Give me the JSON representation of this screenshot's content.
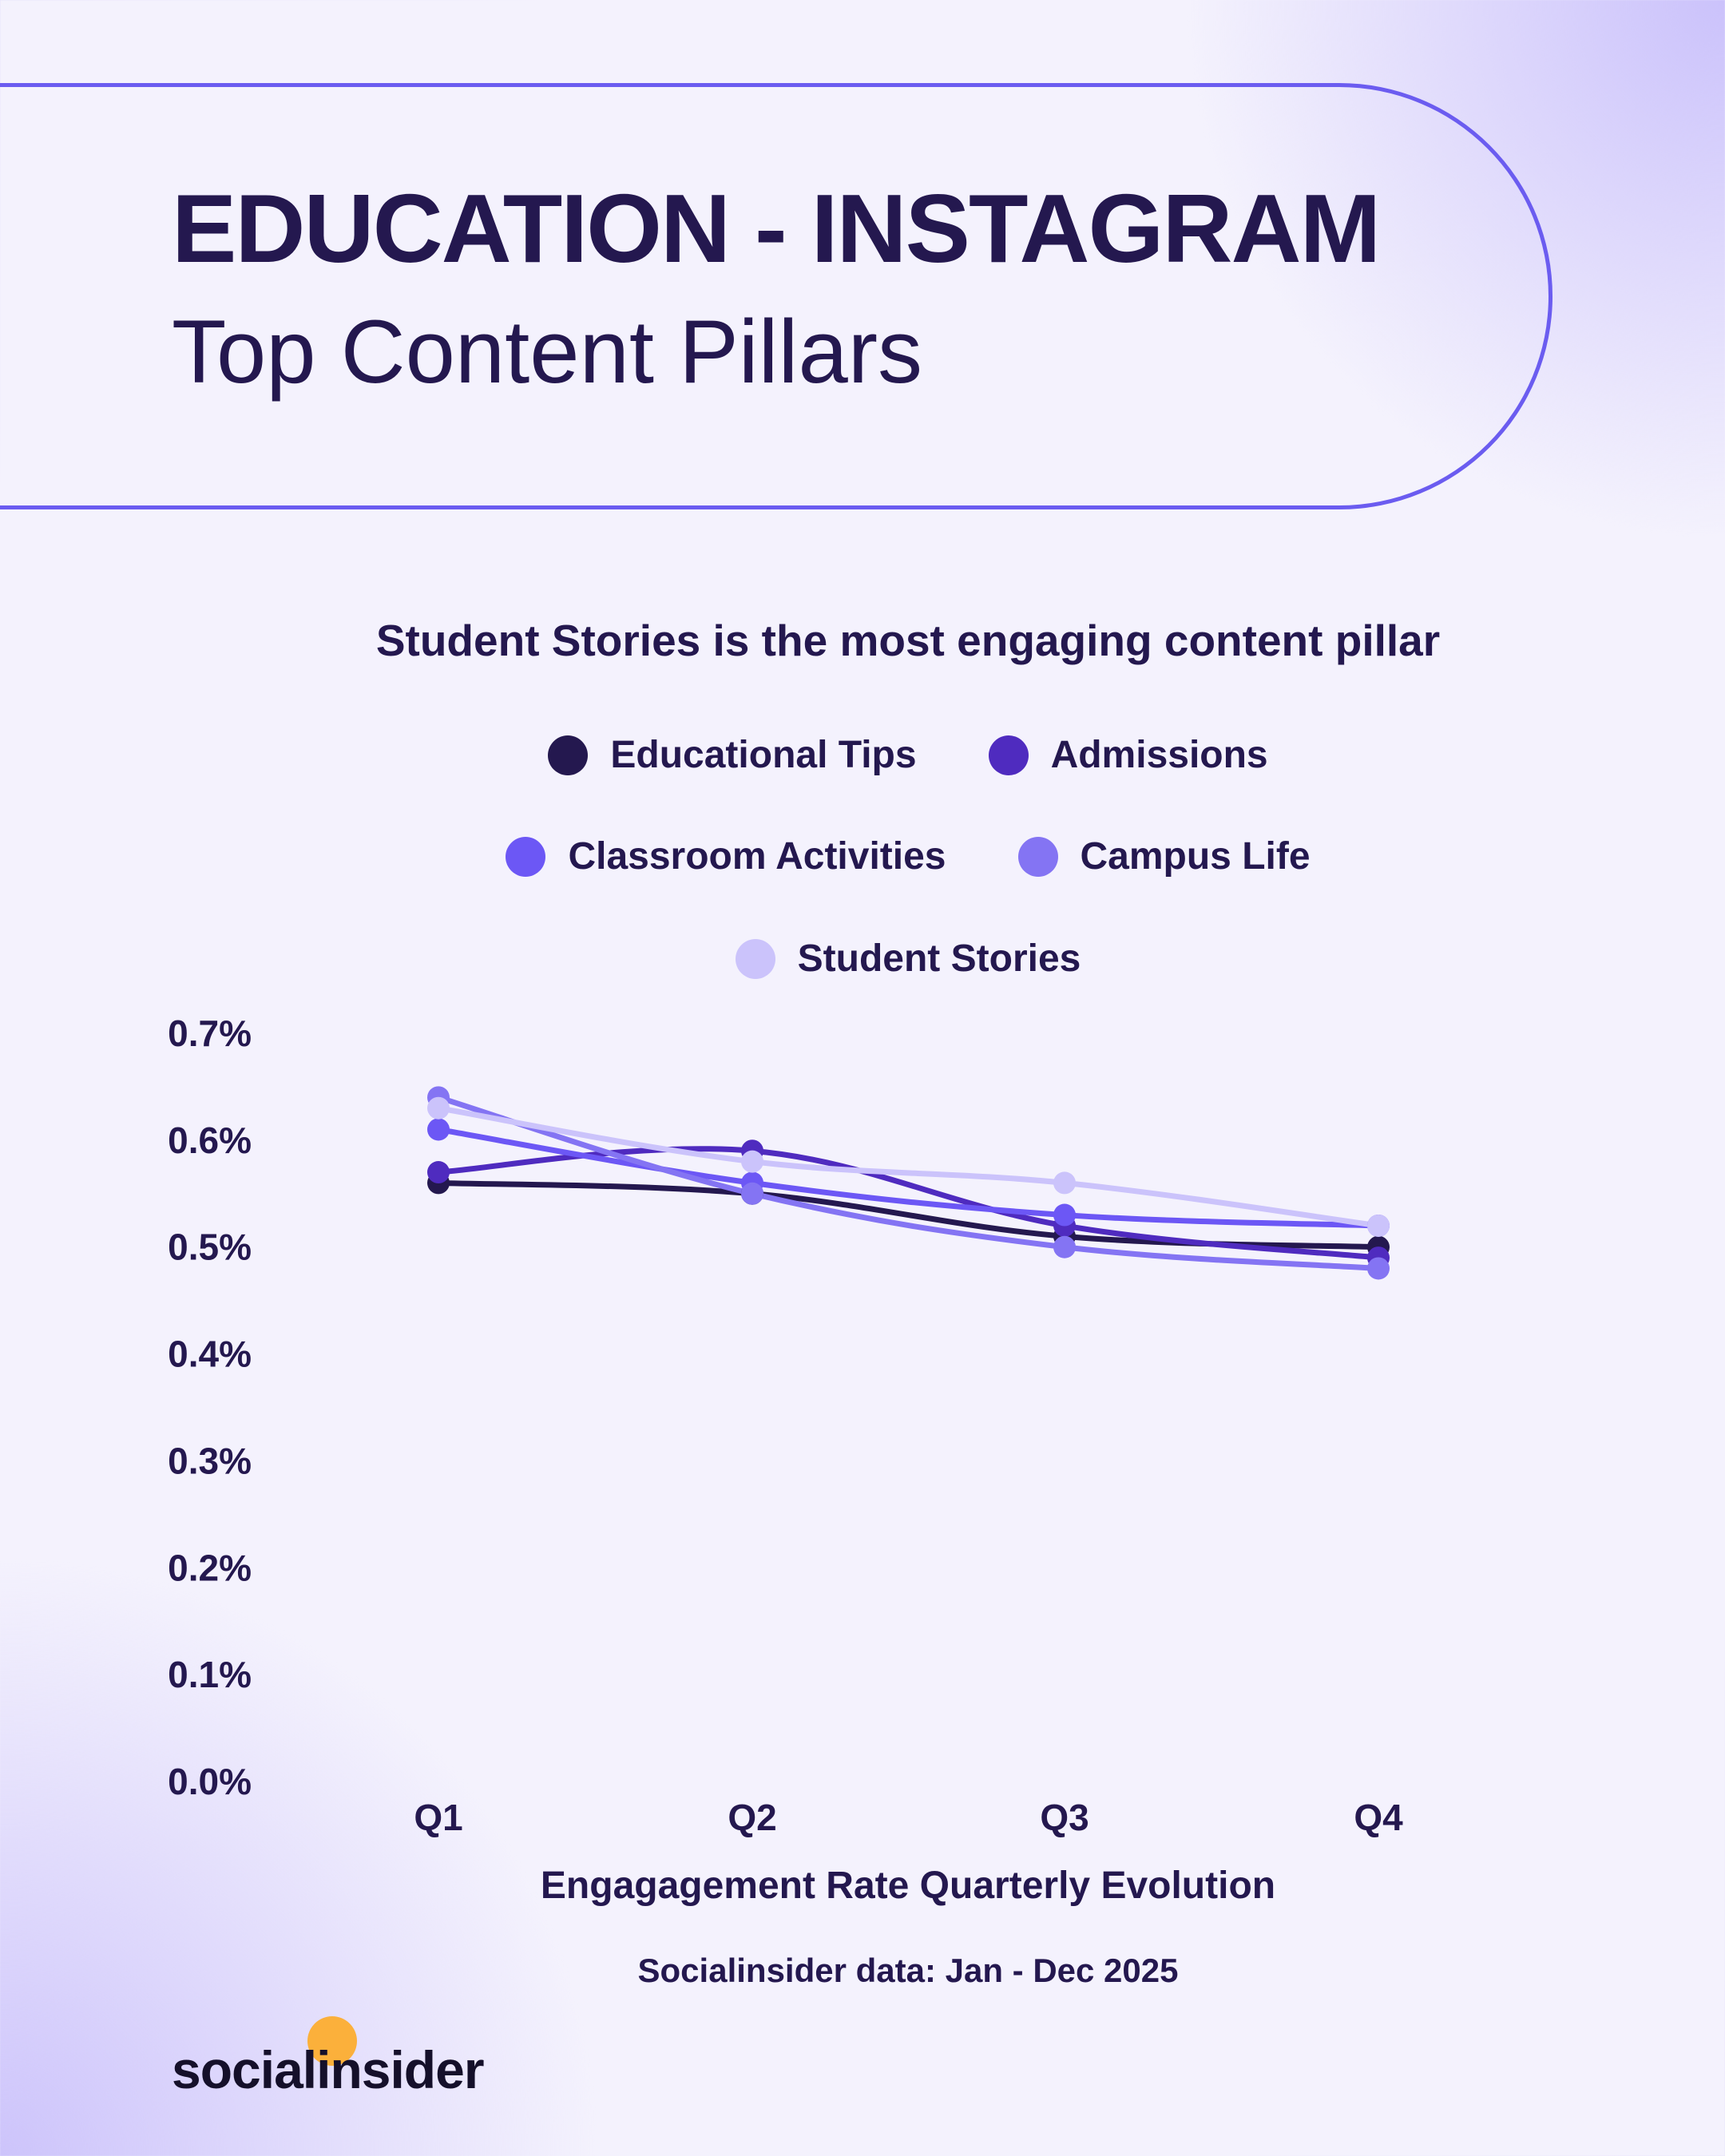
{
  "header": {
    "title": "EDUCATION - INSTAGRAM",
    "subtitle": "Top Content Pillars"
  },
  "footer": {
    "source": "Socialinsider data: Jan - Dec 2025",
    "logo_text": "socialinsider",
    "logo_accent": "#fbb03b"
  },
  "chart_data": {
    "type": "line",
    "title": "Student Stories is the most engaging content pillar",
    "xlabel": "Engagagement Rate Quarterly Evolution",
    "ylabel": "",
    "categories": [
      "Q1",
      "Q2",
      "Q3",
      "Q4"
    ],
    "ylim": [
      0,
      0.7
    ],
    "yticks": [
      "0.0%",
      "0.1%",
      "0.2%",
      "0.3%",
      "0.4%",
      "0.5%",
      "0.6%",
      "0.7%"
    ],
    "unit": "%",
    "grid": false,
    "legend_position": "top",
    "series": [
      {
        "name": "Educational Tips",
        "color": "#24184f",
        "values": [
          0.56,
          0.55,
          0.51,
          0.5
        ]
      },
      {
        "name": "Admissions",
        "color": "#4f2bbf",
        "values": [
          0.57,
          0.59,
          0.52,
          0.49
        ]
      },
      {
        "name": "Classroom Activities",
        "color": "#6c57f5",
        "values": [
          0.61,
          0.56,
          0.53,
          0.52
        ]
      },
      {
        "name": "Campus Life",
        "color": "#8474f3",
        "values": [
          0.64,
          0.55,
          0.5,
          0.48
        ]
      },
      {
        "name": "Student Stories",
        "color": "#cbc3fb",
        "values": [
          0.63,
          0.58,
          0.56,
          0.52
        ]
      }
    ]
  }
}
